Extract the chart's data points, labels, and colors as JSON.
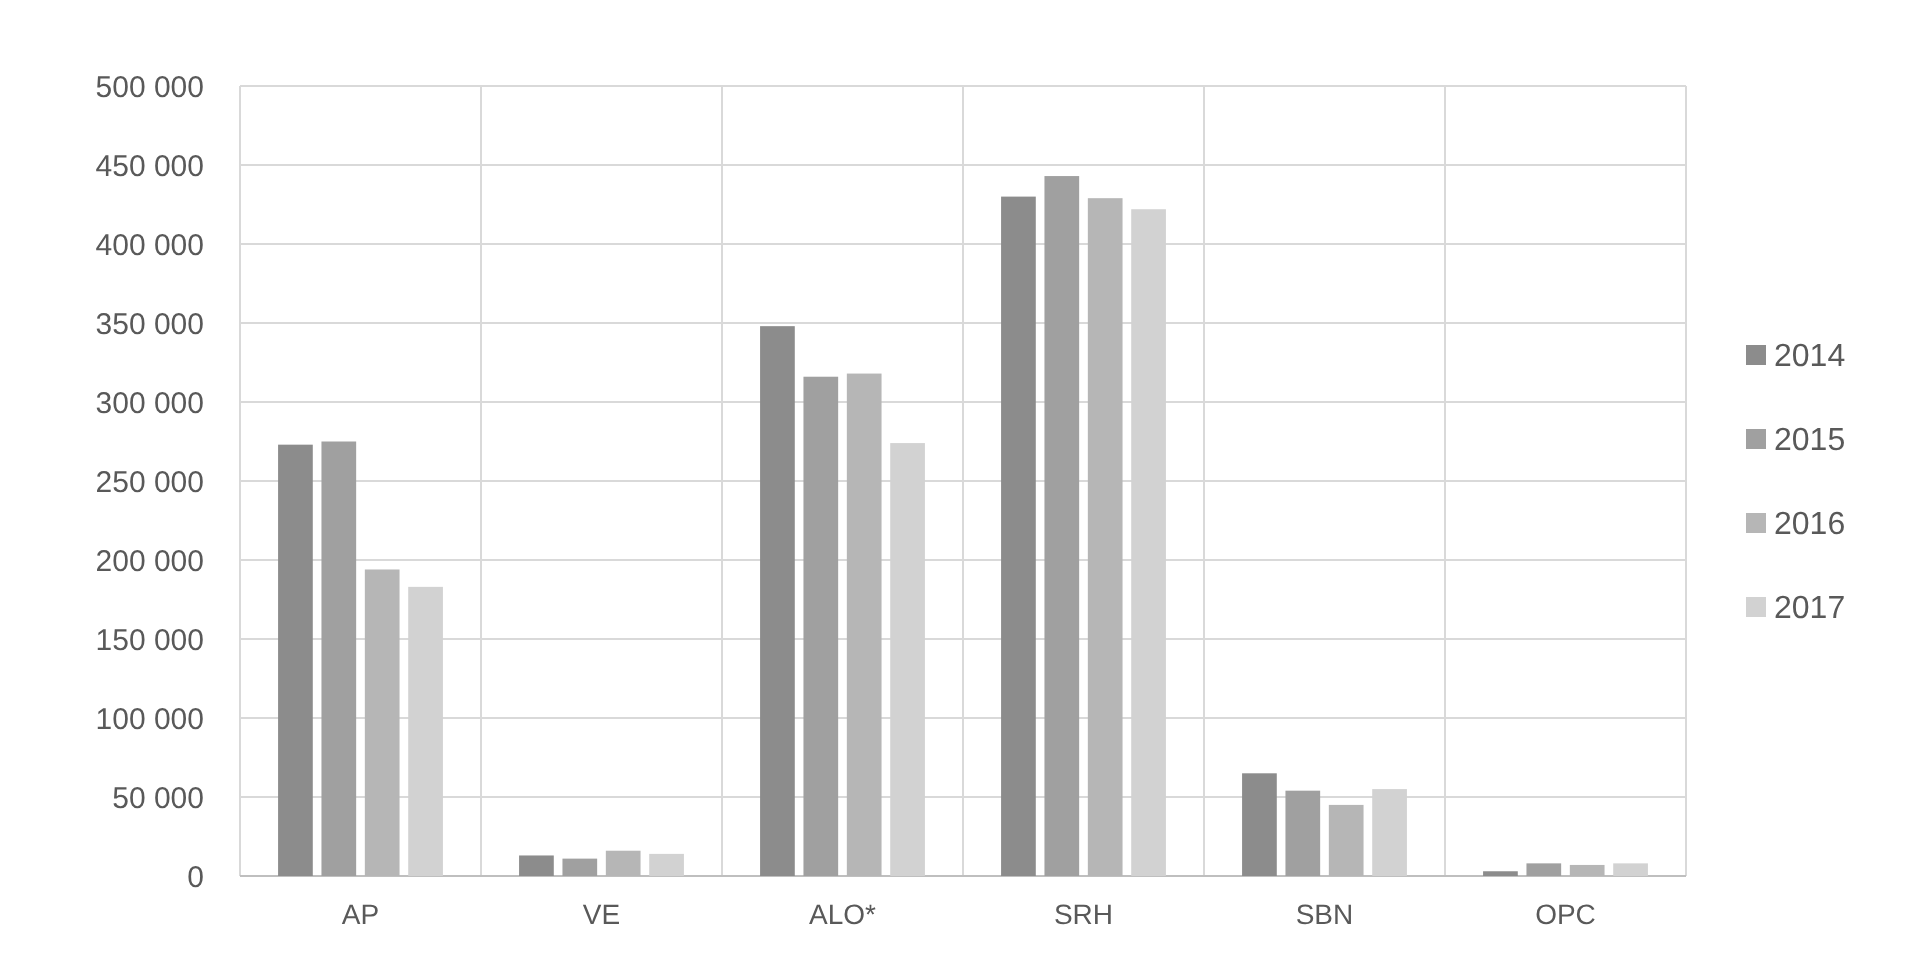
{
  "chart_data": {
    "type": "bar",
    "categories": [
      "AP",
      "VE",
      "ALO*",
      "SRH",
      "SBN",
      "OPC"
    ],
    "series": [
      {
        "name": "2014",
        "color": "#8c8c8c",
        "values": [
          273000,
          13000,
          348000,
          430000,
          65000,
          3000
        ]
      },
      {
        "name": "2015",
        "color": "#a0a0a0",
        "values": [
          275000,
          11000,
          316000,
          443000,
          54000,
          8000
        ]
      },
      {
        "name": "2016",
        "color": "#b6b6b6",
        "values": [
          194000,
          16000,
          318000,
          429000,
          45000,
          7000
        ]
      },
      {
        "name": "2017",
        "color": "#d2d2d2",
        "values": [
          183000,
          14000,
          274000,
          422000,
          55000,
          8000
        ]
      }
    ],
    "ylim": [
      0,
      500000
    ],
    "yticks": [
      {
        "value": 0,
        "label": "0"
      },
      {
        "value": 50000,
        "label": "50 000"
      },
      {
        "value": 100000,
        "label": "100 000"
      },
      {
        "value": 150000,
        "label": "150 000"
      },
      {
        "value": 200000,
        "label": "200 000"
      },
      {
        "value": 250000,
        "label": "250 000"
      },
      {
        "value": 300000,
        "label": "300 000"
      },
      {
        "value": 350000,
        "label": "350 000"
      },
      {
        "value": 400000,
        "label": "400 000"
      },
      {
        "value": 450000,
        "label": "450 000"
      },
      {
        "value": 500000,
        "label": "500 000"
      }
    ],
    "grid": true,
    "legend": "right"
  }
}
